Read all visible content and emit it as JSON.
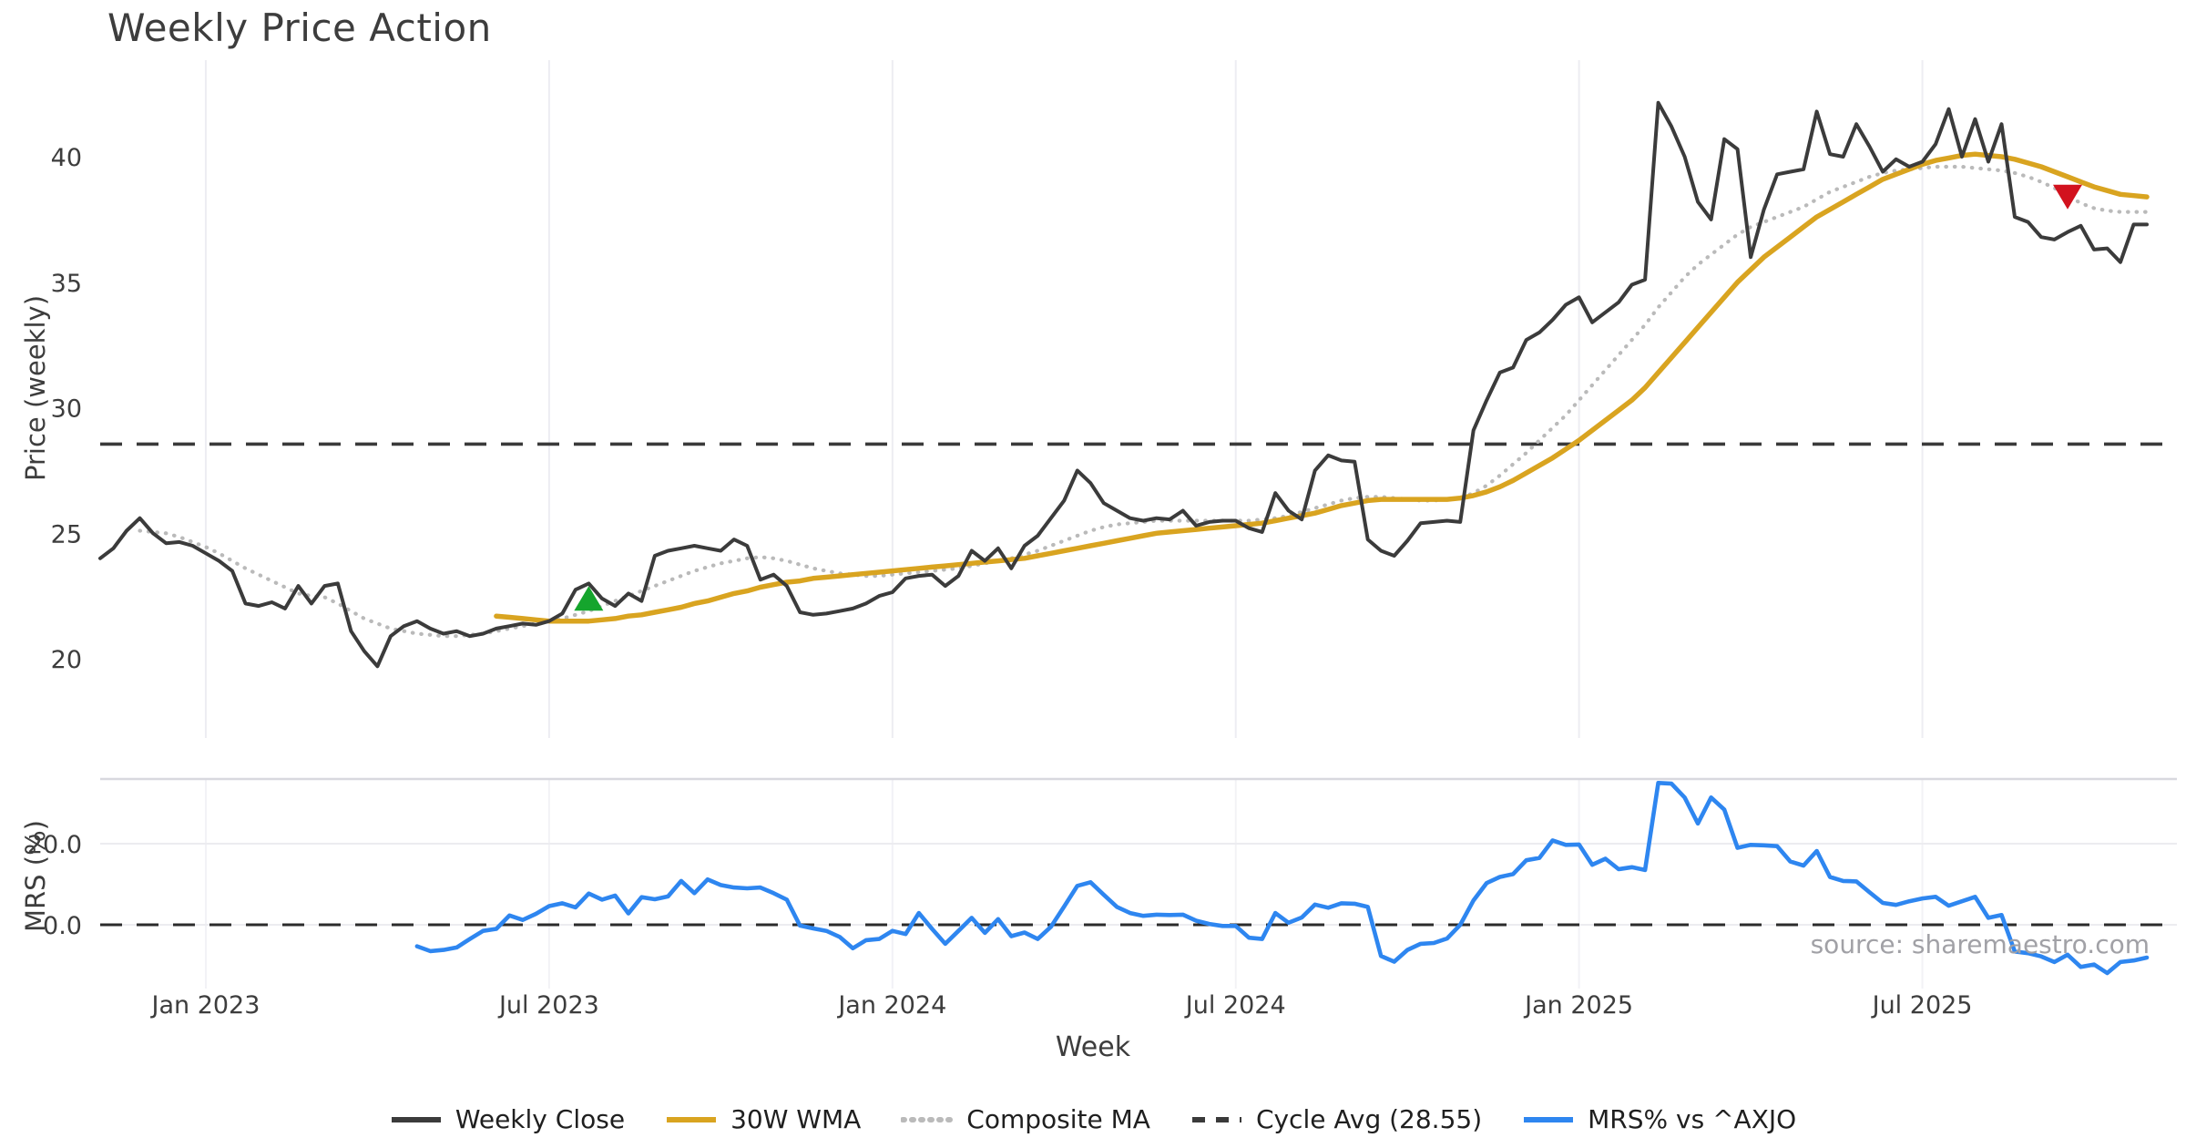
{
  "title": "Weekly Price Action",
  "xlabel": "Week",
  "source_note": "source: sharemaestro.com",
  "colors": {
    "background": "#ffffff",
    "weekly_close": "#3b3b3b",
    "wma_30w": "#d9a420",
    "composite_ma": "#bababa",
    "cycle_avg": "#3a3a3a",
    "mrs_line": "#2e86f0",
    "buy_marker": "#15a52d",
    "sell_marker": "#d2121e",
    "grid": "#ededf2",
    "panel_border": "#d8d8df",
    "tick_text": "#3d3d3d"
  },
  "legend": [
    {
      "label": "Weekly Close",
      "color": "#3b3b3b",
      "style": "solid"
    },
    {
      "label": "30W WMA",
      "color": "#d9a420",
      "style": "solid"
    },
    {
      "label": "Composite MA",
      "color": "#bababa",
      "style": "dotted"
    },
    {
      "label": "Cycle Avg (28.55)",
      "color": "#3a3a3a",
      "style": "dashed"
    },
    {
      "label": "MRS% vs ^AXJO",
      "color": "#2e86f0",
      "style": "solid"
    }
  ],
  "chart_data": [
    {
      "type": "line",
      "panel": "price",
      "ylabel": "Price (weekly)",
      "yticks": [
        20,
        25,
        30,
        35,
        40
      ],
      "ylim": [
        17.2,
        43.9
      ],
      "grid": "vertical-only",
      "legend_position": "bottom-center",
      "xtick_labels": [
        "Jan 2023",
        "Jul 2023",
        "Jan 2024",
        "Jul 2024",
        "Jan 2025",
        "Jul 2025"
      ],
      "xtick_weeks": [
        8,
        34,
        60,
        86,
        112,
        138
      ],
      "weeks_total": 155,
      "cycle_avg": 28.55,
      "series": [
        {
          "name": "Weekly Close",
          "start_week": 0,
          "values": [
            24.0,
            24.4,
            25.1,
            25.6,
            25.0,
            24.6,
            24.65,
            24.5,
            24.2,
            23.9,
            23.5,
            22.2,
            22.1,
            22.25,
            22.0,
            22.9,
            22.2,
            22.9,
            23.0,
            21.1,
            20.3,
            19.7,
            20.9,
            21.3,
            21.5,
            21.2,
            21.0,
            21.1,
            20.9,
            21.0,
            21.2,
            21.3,
            21.4,
            21.35,
            21.5,
            21.8,
            22.75,
            23.0,
            22.4,
            22.1,
            22.6,
            22.3,
            24.1,
            24.3,
            24.4,
            24.5,
            24.4,
            24.3,
            24.75,
            24.5,
            23.15,
            23.35,
            22.9,
            21.85,
            21.75,
            21.8,
            21.9,
            22.0,
            22.2,
            22.5,
            22.65,
            23.2,
            23.3,
            23.35,
            22.9,
            23.3,
            24.3,
            23.9,
            24.4,
            23.6,
            24.5,
            24.9,
            25.6,
            26.3,
            27.5,
            27.0,
            26.2,
            25.9,
            25.6,
            25.5,
            25.6,
            25.55,
            25.9,
            25.3,
            25.45,
            25.5,
            25.5,
            25.2,
            25.05,
            26.6,
            25.9,
            25.55,
            27.5,
            28.1,
            27.9,
            27.85,
            24.75,
            24.3,
            24.1,
            24.7,
            25.4,
            25.45,
            25.5,
            25.45,
            29.1,
            30.3,
            31.4,
            31.6,
            32.7,
            33.0,
            33.5,
            34.1,
            34.4,
            33.4,
            33.8,
            34.2,
            34.9,
            35.1,
            42.15,
            41.2,
            40.0,
            38.2,
            37.5,
            40.7,
            40.3,
            36.0,
            37.9,
            39.3,
            39.4,
            39.5,
            41.8,
            40.1,
            40.0,
            41.3,
            40.4,
            39.4,
            39.9,
            39.6,
            39.8,
            40.5,
            41.9,
            40.0,
            41.5,
            39.8,
            41.3,
            37.6,
            37.4,
            36.8,
            36.7,
            37.0,
            37.25,
            36.3,
            36.35,
            35.8,
            37.3,
            37.3
          ]
        },
        {
          "name": "30W WMA",
          "start_week": 30,
          "values": [
            21.7,
            21.65,
            21.6,
            21.55,
            21.5,
            21.5,
            21.5,
            21.5,
            21.55,
            21.6,
            21.7,
            21.75,
            21.85,
            21.95,
            22.05,
            22.2,
            22.3,
            22.45,
            22.6,
            22.7,
            22.85,
            22.95,
            23.05,
            23.1,
            23.2,
            23.25,
            23.3,
            23.35,
            23.4,
            23.45,
            23.5,
            23.55,
            23.6,
            23.65,
            23.7,
            23.75,
            23.8,
            23.85,
            23.9,
            23.95,
            24.0,
            24.1,
            24.2,
            24.3,
            24.4,
            24.5,
            24.6,
            24.7,
            24.8,
            24.9,
            25.0,
            25.05,
            25.1,
            25.15,
            25.2,
            25.25,
            25.3,
            25.35,
            25.4,
            25.5,
            25.6,
            25.7,
            25.8,
            25.95,
            26.1,
            26.2,
            26.3,
            26.35,
            26.35,
            26.35,
            26.35,
            26.35,
            26.35,
            26.4,
            26.5,
            26.65,
            26.85,
            27.1,
            27.4,
            27.7,
            28.0,
            28.35,
            28.7,
            29.1,
            29.5,
            29.9,
            30.3,
            30.8,
            31.4,
            32.0,
            32.6,
            33.2,
            33.8,
            34.4,
            35.0,
            35.5,
            36.0,
            36.4,
            36.8,
            37.2,
            37.6,
            37.9,
            38.2,
            38.5,
            38.8,
            39.1,
            39.3,
            39.5,
            39.7,
            39.85,
            39.95,
            40.05,
            40.1,
            40.05,
            40.0,
            39.9,
            39.75,
            39.6,
            39.4,
            39.2,
            39.0,
            38.8,
            38.65,
            38.5,
            38.45,
            38.4
          ]
        },
        {
          "name": "Composite MA",
          "start_week": 3,
          "values": [
            25.1,
            25.05,
            25.0,
            24.85,
            24.65,
            24.45,
            24.2,
            23.9,
            23.6,
            23.35,
            23.1,
            22.85,
            22.6,
            22.5,
            22.45,
            22.2,
            21.9,
            21.6,
            21.4,
            21.2,
            21.1,
            21.0,
            20.95,
            20.9,
            20.9,
            20.95,
            21.0,
            21.1,
            21.2,
            21.3,
            21.4,
            21.5,
            21.6,
            21.75,
            21.9,
            22.1,
            22.3,
            22.5,
            22.7,
            22.9,
            23.1,
            23.3,
            23.5,
            23.65,
            23.8,
            23.9,
            24.0,
            24.05,
            24.0,
            23.9,
            23.75,
            23.6,
            23.5,
            23.4,
            23.35,
            23.3,
            23.3,
            23.35,
            23.4,
            23.45,
            23.5,
            23.55,
            23.6,
            23.7,
            23.8,
            23.9,
            24.0,
            24.15,
            24.3,
            24.5,
            24.7,
            24.9,
            25.1,
            25.25,
            25.35,
            25.4,
            25.45,
            25.5,
            25.5,
            25.5,
            25.5,
            25.5,
            25.5,
            25.5,
            25.5,
            25.55,
            25.6,
            25.7,
            25.85,
            26.0,
            26.15,
            26.3,
            26.4,
            26.45,
            26.45,
            26.4,
            26.35,
            26.3,
            26.3,
            26.35,
            26.4,
            26.6,
            26.9,
            27.3,
            27.75,
            28.2,
            28.7,
            29.2,
            29.7,
            30.3,
            30.9,
            31.5,
            32.1,
            32.7,
            33.3,
            34.0,
            34.6,
            35.2,
            35.7,
            36.1,
            36.5,
            36.9,
            37.2,
            37.4,
            37.6,
            37.8,
            38.0,
            38.3,
            38.6,
            38.8,
            39.0,
            39.2,
            39.35,
            39.45,
            39.5,
            39.55,
            39.6,
            39.6,
            39.6,
            39.55,
            39.5,
            39.45,
            39.35,
            39.2,
            39.0,
            38.75,
            38.45,
            38.15,
            37.95,
            37.85,
            37.8,
            37.8,
            37.8
          ]
        }
      ],
      "markers": [
        {
          "name": "buy-signal",
          "shape": "triangle-up",
          "week": 37,
          "value": 22.35,
          "color": "#15a52d"
        },
        {
          "name": "sell-signal",
          "shape": "triangle-down",
          "week": 149,
          "value": 38.45,
          "color": "#d2121e"
        }
      ]
    },
    {
      "type": "line",
      "panel": "mrs",
      "ylabel": "MRS (%)",
      "ytick_labels": [
        "0.0",
        "20.0"
      ],
      "ytick_values": [
        0,
        20
      ],
      "ylim": [
        -14,
        36
      ],
      "zero_line": 0,
      "series": [
        {
          "name": "MRS% vs ^AXJO",
          "start_week": 24,
          "values": [
            -5.3,
            -6.5,
            -6.2,
            -5.6,
            -3.5,
            -1.5,
            -1.0,
            2.3,
            1.2,
            2.7,
            4.6,
            5.3,
            4.3,
            7.7,
            6.2,
            7.2,
            2.8,
            6.8,
            6.3,
            7.0,
            10.8,
            7.8,
            11.2,
            9.8,
            9.2,
            9.0,
            9.2,
            7.8,
            6.2,
            -0.2,
            -0.9,
            -1.5,
            -3.0,
            -5.8,
            -3.8,
            -3.5,
            -1.5,
            -2.3,
            2.9,
            -1.0,
            -4.7,
            -1.5,
            1.7,
            -2.0,
            1.4,
            -2.8,
            -1.9,
            -3.5,
            -0.5,
            4.5,
            9.6,
            10.5,
            7.4,
            4.4,
            2.9,
            2.2,
            2.5,
            2.4,
            2.5,
            1.0,
            0.2,
            -0.3,
            -0.3,
            -3.2,
            -3.5,
            2.9,
            0.5,
            1.8,
            5.0,
            4.2,
            5.3,
            5.2,
            4.4,
            -7.7,
            -9.1,
            -6.2,
            -4.7,
            -4.5,
            -3.4,
            0.0,
            6.0,
            10.3,
            11.8,
            12.5,
            15.9,
            16.5,
            20.8,
            19.7,
            19.8,
            14.8,
            16.3,
            13.7,
            14.2,
            13.5,
            35.0,
            34.8,
            31.4,
            25.0,
            31.4,
            28.4,
            19.0,
            19.7,
            19.6,
            19.4,
            15.6,
            14.6,
            18.2,
            11.8,
            10.8,
            10.7,
            8.0,
            5.4,
            4.9,
            5.8,
            6.5,
            6.9,
            4.7,
            5.8,
            6.9,
            1.7,
            2.4,
            -6.6,
            -7.0,
            -7.8,
            -9.2,
            -7.4,
            -10.4,
            -9.8,
            -11.9,
            -9.2,
            -8.8,
            -8.1
          ]
        }
      ]
    }
  ]
}
